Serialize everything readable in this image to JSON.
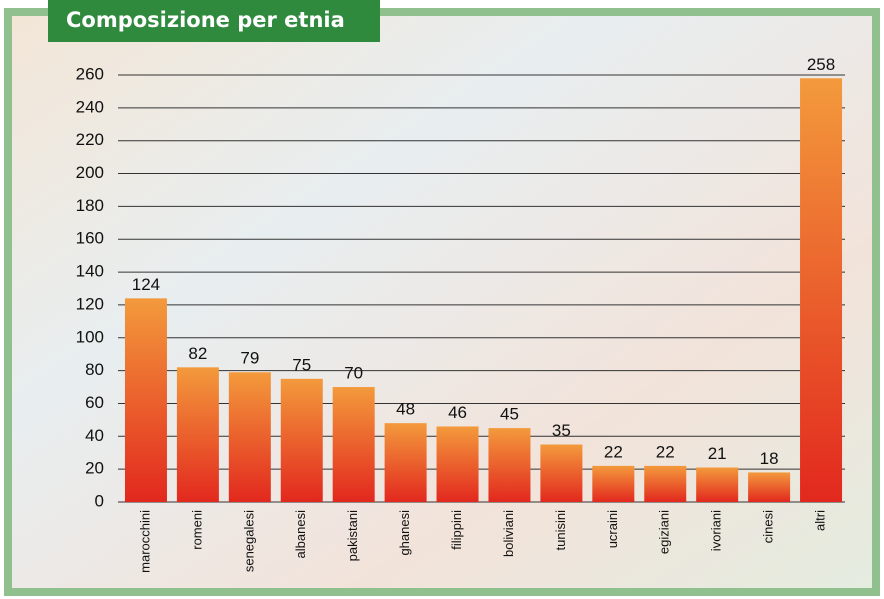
{
  "chart_data": {
    "type": "bar",
    "title": "Composizione per etnia",
    "categories": [
      "marocchini",
      "romeni",
      "senegalesi",
      "albanesi",
      "pakistani",
      "ghanesi",
      "filippini",
      "boliviani",
      "tunisini",
      "ucraini",
      "egiziani",
      "ivoriani",
      "cinesi",
      "altri"
    ],
    "values": [
      124,
      82,
      79,
      75,
      70,
      48,
      46,
      45,
      35,
      22,
      22,
      21,
      18,
      258
    ],
    "color": "#f39a3c",
    "ylim": [
      0,
      260
    ],
    "yticks": [
      0,
      20,
      40,
      60,
      80,
      100,
      120,
      140,
      160,
      180,
      200,
      220,
      240,
      260
    ],
    "grid": true
  }
}
